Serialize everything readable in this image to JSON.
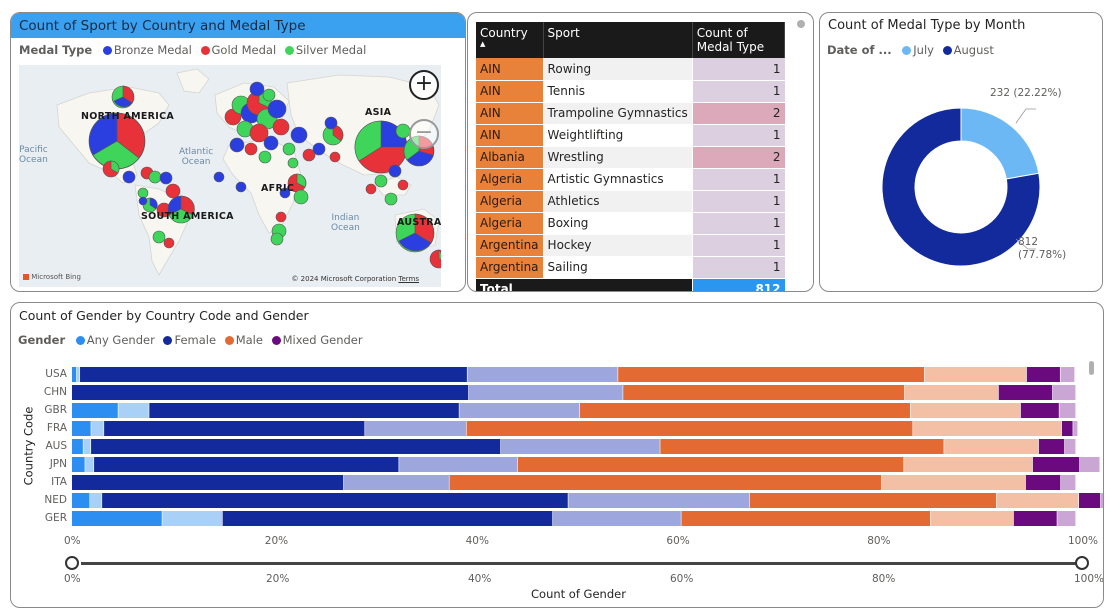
{
  "map": {
    "title": "Count of Sport by Country and Medal Type",
    "legend_title": "Medal Type",
    "legend": [
      {
        "label": "Bronze Medal",
        "color": "#2b3fe0"
      },
      {
        "label": "Gold Medal",
        "color": "#e8323a"
      },
      {
        "label": "Silver Medal",
        "color": "#3fd45a"
      }
    ],
    "labels": {
      "north_america": "NORTH AMERICA",
      "south_america": "SOUTH AMERICA",
      "asia": "ASIA",
      "africa": "AFRIC",
      "australia": "AUSTRALIA",
      "pacific_1": "Pacific",
      "pacific_2": "Ocean",
      "atlantic_1": "Atlantic",
      "atlantic_2": "Ocean",
      "indian_1": "Indian",
      "indian_2": "Ocean"
    },
    "zoom_in": "+",
    "zoom_out": "−",
    "bing": "Microsoft Bing",
    "copyright": "© 2024 Microsoft Corporation",
    "terms": "Terms"
  },
  "table": {
    "headers": {
      "country": "Country",
      "sport": "Sport",
      "count": "Count of Medal Type"
    },
    "rows": [
      {
        "country": "AIN",
        "sport": "Rowing",
        "count": "1",
        "hi": false
      },
      {
        "country": "AIN",
        "sport": "Tennis",
        "count": "1",
        "hi": false
      },
      {
        "country": "AIN",
        "sport": "Trampoline Gymnastics",
        "count": "2",
        "hi": true
      },
      {
        "country": "AIN",
        "sport": "Weightlifting",
        "count": "1",
        "hi": false
      },
      {
        "country": "Albania",
        "sport": "Wrestling",
        "count": "2",
        "hi": true
      },
      {
        "country": "Algeria",
        "sport": "Artistic Gymnastics",
        "count": "1",
        "hi": false
      },
      {
        "country": "Algeria",
        "sport": "Athletics",
        "count": "1",
        "hi": false
      },
      {
        "country": "Algeria",
        "sport": "Boxing",
        "count": "1",
        "hi": false
      },
      {
        "country": "Argentina",
        "sport": "Hockey",
        "count": "1",
        "hi": false
      },
      {
        "country": "Argentina",
        "sport": "Sailing",
        "count": "1",
        "hi": false
      }
    ],
    "total_label": "Total",
    "total_value": "812"
  },
  "donut": {
    "title": "Count of Medal Type by Month",
    "legend_title": "Date of ...",
    "legend": [
      {
        "label": "July",
        "color": "#6cb8f5"
      },
      {
        "label": "August",
        "color": "#122a9c"
      }
    ],
    "label_july": "232 (22.22%)",
    "label_aug_1": "812",
    "label_aug_2": "(77.78%)"
  },
  "bars": {
    "title": "Count of Gender by Country Code and Gender",
    "legend_title": "Gender",
    "legend": [
      {
        "label": "Any Gender",
        "color": "#2b8ef0"
      },
      {
        "label": "Female",
        "color": "#122a9c"
      },
      {
        "label": "Male",
        "color": "#e36a32"
      },
      {
        "label": "Mixed Gender",
        "color": "#6a0a7e"
      }
    ],
    "y_axis_title": "Country Code",
    "x_axis_title": "Count of Gender",
    "x_ticks": [
      "0%",
      "20%",
      "40%",
      "60%",
      "80%",
      "100%"
    ],
    "slider_ticks": [
      "0%",
      "20%",
      "40%",
      "60%",
      "80%",
      "100%"
    ]
  },
  "chart_data": [
    {
      "type": "pie",
      "title": "Count of Medal Type by Month",
      "legend_title": "Date of ...",
      "categories": [
        "July",
        "August"
      ],
      "values": [
        232,
        812
      ],
      "percent": [
        22.22,
        77.78
      ]
    },
    {
      "type": "bar",
      "orientation": "horizontal",
      "stacked": "100%",
      "title": "Count of Gender by Country Code and Gender",
      "categories": [
        "USA",
        "CHN",
        "GBR",
        "FRA",
        "AUS",
        "JPN",
        "ITA",
        "NED",
        "GER"
      ],
      "xlabel": "Count of Gender",
      "ylabel": "Country Code",
      "xlim": [
        0,
        100
      ],
      "series": [
        {
          "name": "Any Gender",
          "colors": [
            "#2b8ef0",
            "#a9d0f7"
          ],
          "values": [
            0.8,
            0,
            7.7,
            3.2,
            1.9,
            2.2,
            0,
            3.0,
            15.0
          ]
        },
        {
          "name": "Female",
          "colors": [
            "#122a9c",
            "#9ea7dd"
          ],
          "values": [
            53.6,
            54.9,
            42.9,
            36.1,
            56.7,
            42.2,
            37.6,
            64.5,
            45.7
          ]
        },
        {
          "name": "Male",
          "colors": [
            "#e36a32",
            "#f3c0a6"
          ],
          "values": [
            40.7,
            37.4,
            43.9,
            59.3,
            37.7,
            51.3,
            57.4,
            32.8,
            33.1
          ]
        },
        {
          "name": "Mixed Gender",
          "colors": [
            "#6a0a7e",
            "#c9a6d3"
          ],
          "values": [
            4.8,
            7.7,
            5.5,
            1.6,
            3.7,
            6.7,
            5.0,
            3.1,
            6.2
          ]
        }
      ]
    }
  ]
}
